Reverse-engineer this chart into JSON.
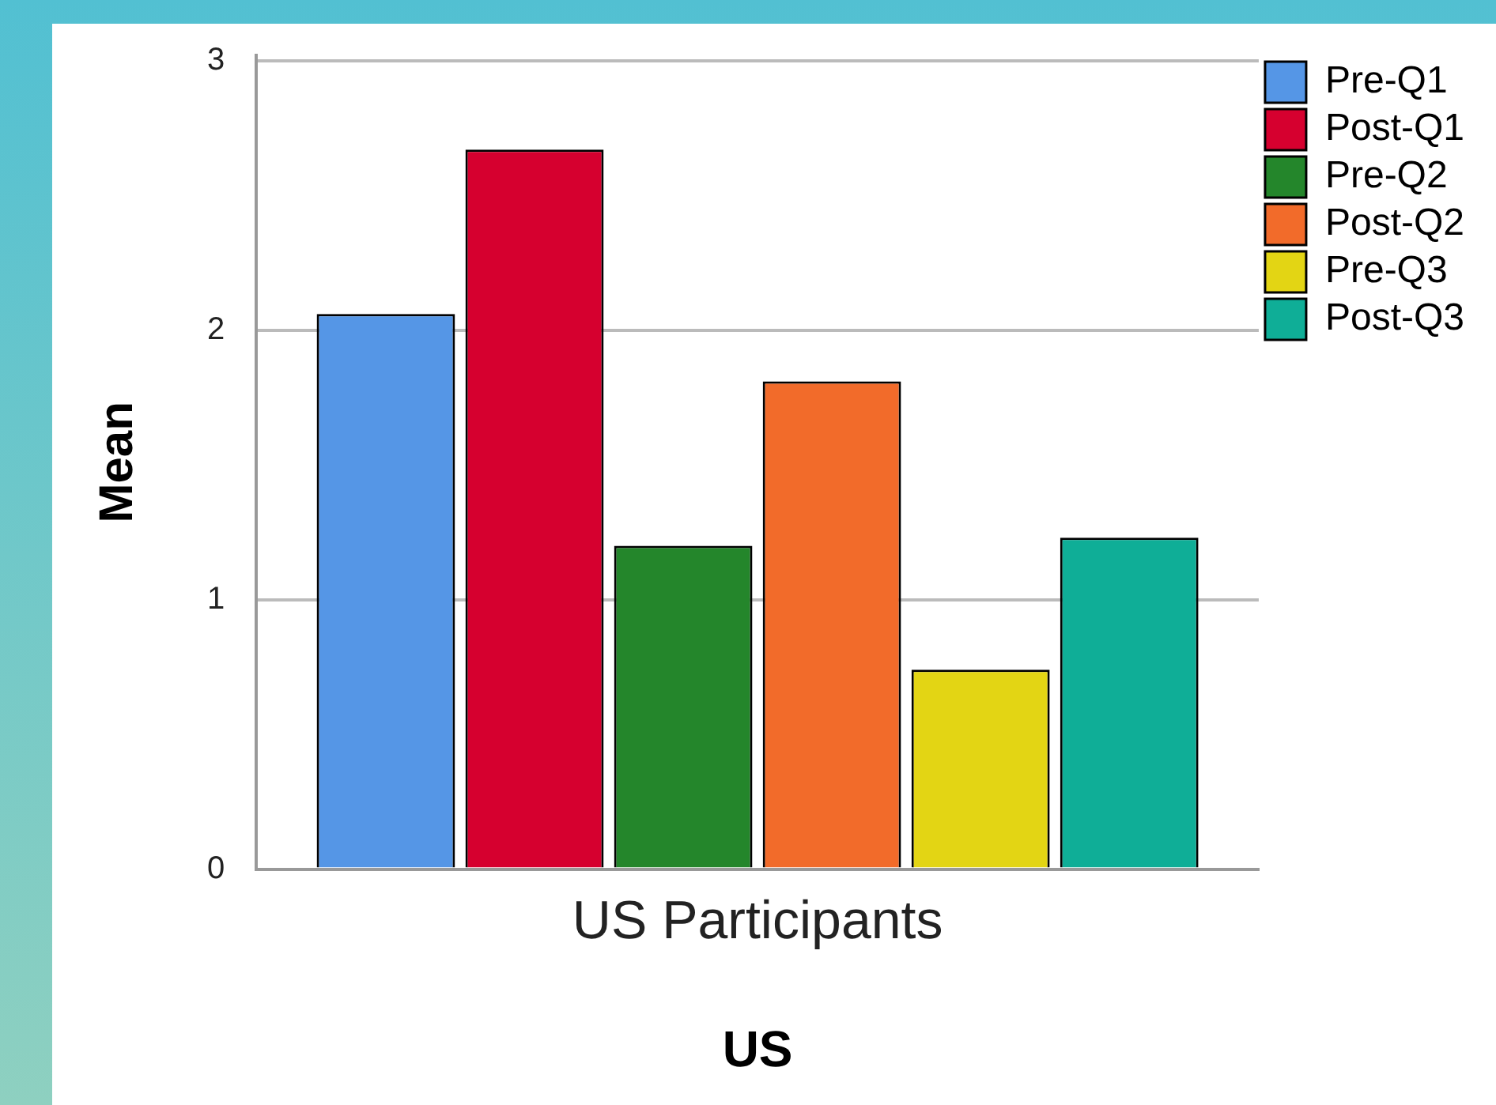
{
  "chart_data": {
    "type": "bar",
    "xlabel": "US",
    "ylabel": "Mean",
    "categories": [
      "US Participants"
    ],
    "series": [
      {
        "name": "Pre-Q1",
        "color": "#5596e6",
        "values": [
          2.06
        ]
      },
      {
        "name": "Post-Q1",
        "color": "#d6002f",
        "values": [
          2.67
        ]
      },
      {
        "name": "Pre-Q2",
        "color": "#24862b",
        "values": [
          1.2
        ]
      },
      {
        "name": "Post-Q2",
        "color": "#f26b2a",
        "values": [
          1.81
        ]
      },
      {
        "name": "Pre-Q3",
        "color": "#e3d514",
        "values": [
          0.74
        ]
      },
      {
        "name": "Post-Q3",
        "color": "#0fae97",
        "values": [
          1.23
        ]
      }
    ],
    "ylim": [
      0,
      3.02
    ],
    "yticks": [
      0,
      1,
      2,
      3
    ],
    "grid": "y",
    "legend": "top right"
  }
}
